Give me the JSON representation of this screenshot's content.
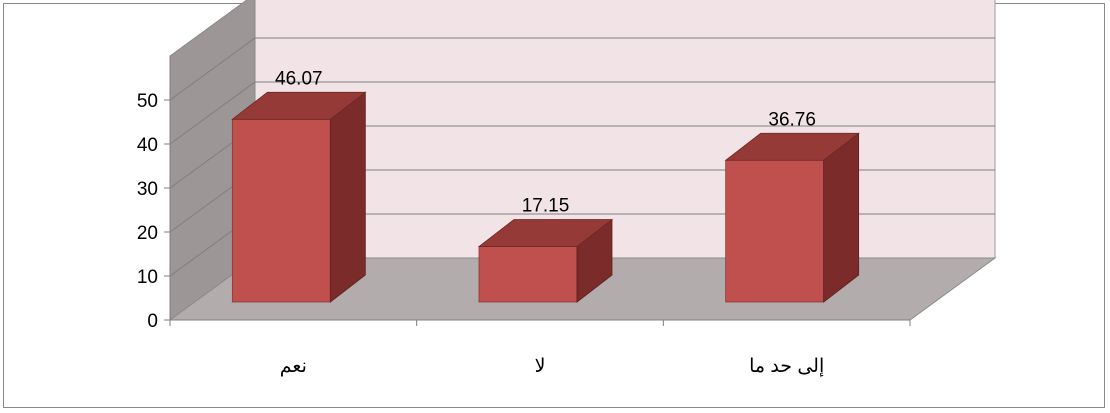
{
  "chart_data": {
    "type": "bar",
    "style": "3d-column",
    "categories": [
      "نعم",
      "لا",
      "إلى حد ما"
    ],
    "values": [
      46.07,
      17.15,
      36.76
    ],
    "data_labels": [
      "46.07",
      "17.15",
      "36.76"
    ],
    "y_ticks": [
      "0",
      "10",
      "20",
      "30",
      "40",
      "50"
    ],
    "ylim": [
      0,
      60
    ],
    "grid": true,
    "legend": "none",
    "colors": {
      "bar_front": "#c0504d",
      "bar_side": "#7b2c2a",
      "bar_top": "#963a38",
      "back_wall": "#f2e4e6",
      "left_wall": "#9c9696",
      "floor": "#b3acac",
      "gridline": "#7f7f7f"
    }
  }
}
